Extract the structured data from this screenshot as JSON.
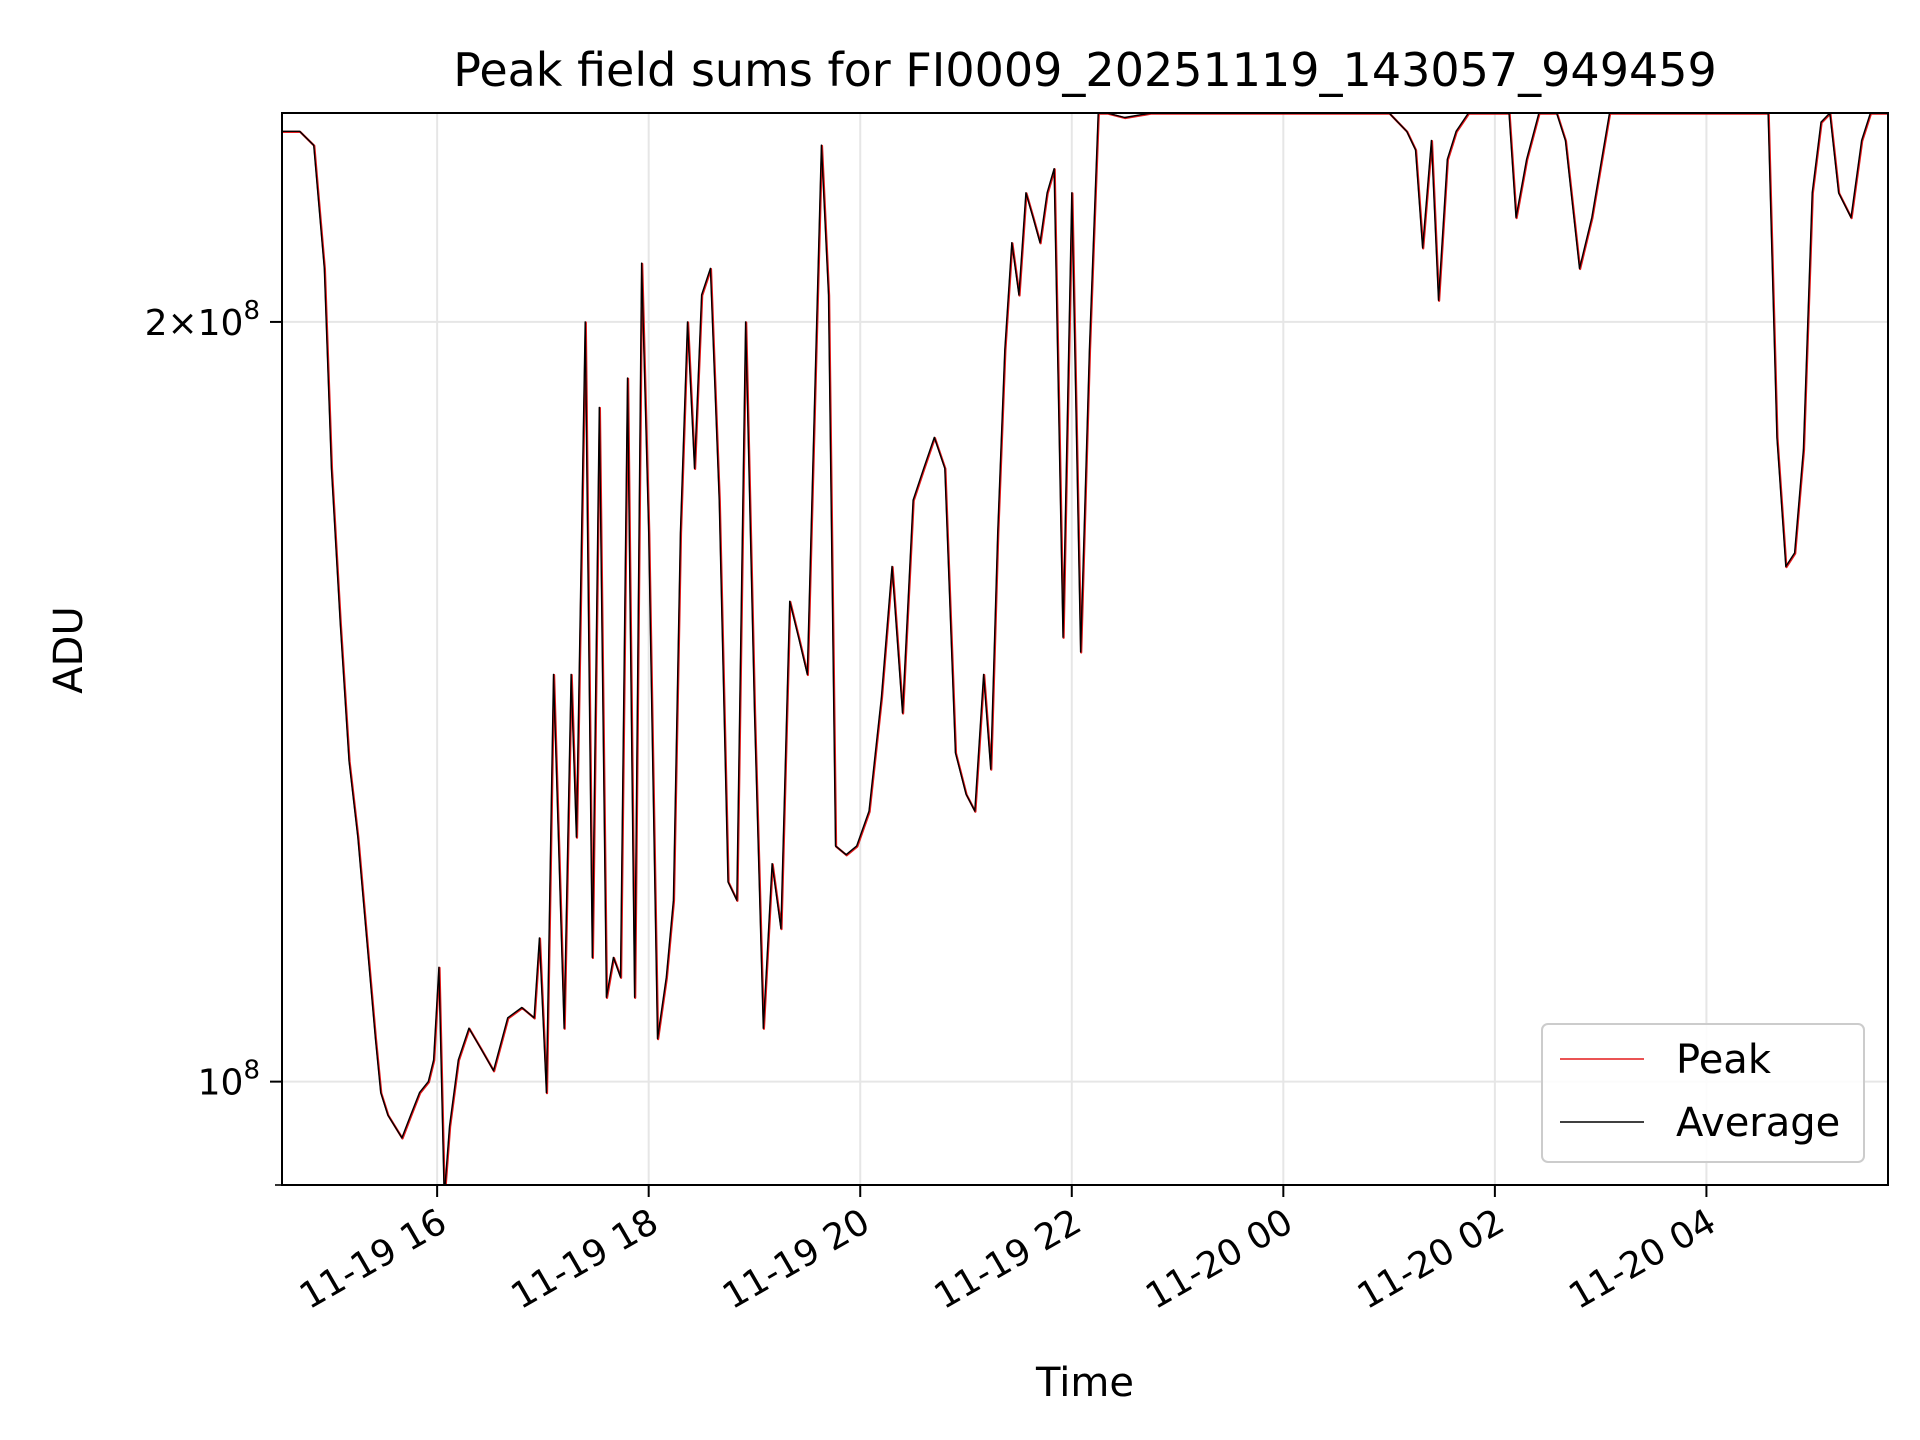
{
  "chart_data": {
    "type": "line",
    "title": "Peak field sums for FI0009_20251119_143057_949459",
    "xlabel": "Time",
    "ylabel": "ADU",
    "y_scale": "log",
    "x_range": [
      "2025-11-19 14:32",
      "2025-11-20 05:43"
    ],
    "ylim": [
      91000000,
      242000000
    ],
    "x_ticks": [
      {
        "label": "11-19 16",
        "t": "2025-11-19 16:00"
      },
      {
        "label": "11-19 18",
        "t": "2025-11-19 18:00"
      },
      {
        "label": "11-19 20",
        "t": "2025-11-19 20:00"
      },
      {
        "label": "11-19 22",
        "t": "2025-11-19 22:00"
      },
      {
        "label": "11-20 00",
        "t": "2025-11-20 00:00"
      },
      {
        "label": "11-20 02",
        "t": "2025-11-20 02:00"
      },
      {
        "label": "11-20 04",
        "t": "2025-11-20 04:00"
      }
    ],
    "y_ticks": [
      {
        "label": "2×10",
        "exp": "8",
        "value": 200000000
      },
      {
        "label": "10",
        "exp": "8",
        "value": 100000000
      }
    ],
    "grid": true,
    "legend_position": "lower right",
    "series": [
      {
        "name": "Peak",
        "color": "#e31a1c",
        "values_ref": "shared"
      },
      {
        "name": "Average",
        "color": "#000000",
        "values_ref": "shared"
      }
    ],
    "x": [
      "2025-11-19 14:32",
      "2025-11-19 14:42",
      "2025-11-19 14:50",
      "2025-11-19 14:56",
      "2025-11-19 15:00",
      "2025-11-19 15:05",
      "2025-11-19 15:10",
      "2025-11-19 15:15",
      "2025-11-19 15:20",
      "2025-11-19 15:25",
      "2025-11-19 15:28",
      "2025-11-19 15:32",
      "2025-11-19 15:36",
      "2025-11-19 15:40",
      "2025-11-19 15:45",
      "2025-11-19 15:50",
      "2025-11-19 15:55",
      "2025-11-19 15:58",
      "2025-11-19 16:01",
      "2025-11-19 16:04",
      "2025-11-19 16:07",
      "2025-11-19 16:12",
      "2025-11-19 16:18",
      "2025-11-19 16:25",
      "2025-11-19 16:32",
      "2025-11-19 16:40",
      "2025-11-19 16:48",
      "2025-11-19 16:55",
      "2025-11-19 16:58",
      "2025-11-19 17:02",
      "2025-11-19 17:06",
      "2025-11-19 17:12",
      "2025-11-19 17:16",
      "2025-11-19 17:19",
      "2025-11-19 17:24",
      "2025-11-19 17:28",
      "2025-11-19 17:32",
      "2025-11-19 17:36",
      "2025-11-19 17:40",
      "2025-11-19 17:44",
      "2025-11-19 17:48",
      "2025-11-19 17:52",
      "2025-11-19 17:56",
      "2025-11-19 18:00",
      "2025-11-19 18:05",
      "2025-11-19 18:10",
      "2025-11-19 18:14",
      "2025-11-19 18:18",
      "2025-11-19 18:22",
      "2025-11-19 18:26",
      "2025-11-19 18:30",
      "2025-11-19 18:35",
      "2025-11-19 18:40",
      "2025-11-19 18:45",
      "2025-11-19 18:50",
      "2025-11-19 18:55",
      "2025-11-19 19:00",
      "2025-11-19 19:05",
      "2025-11-19 19:10",
      "2025-11-19 19:15",
      "2025-11-19 19:20",
      "2025-11-19 19:25",
      "2025-11-19 19:30",
      "2025-11-19 19:34",
      "2025-11-19 19:38",
      "2025-11-19 19:42",
      "2025-11-19 19:46",
      "2025-11-19 19:52",
      "2025-11-19 19:58",
      "2025-11-19 20:05",
      "2025-11-19 20:12",
      "2025-11-19 20:18",
      "2025-11-19 20:24",
      "2025-11-19 20:30",
      "2025-11-19 20:36",
      "2025-11-19 20:42",
      "2025-11-19 20:48",
      "2025-11-19 20:54",
      "2025-11-19 21:00",
      "2025-11-19 21:05",
      "2025-11-19 21:10",
      "2025-11-19 21:14",
      "2025-11-19 21:18",
      "2025-11-19 21:22",
      "2025-11-19 21:26",
      "2025-11-19 21:30",
      "2025-11-19 21:34",
      "2025-11-19 21:38",
      "2025-11-19 21:42",
      "2025-11-19 21:46",
      "2025-11-19 21:50",
      "2025-11-19 21:55",
      "2025-11-19 22:00",
      "2025-11-19 22:05",
      "2025-11-19 22:10",
      "2025-11-19 22:15",
      "2025-11-19 22:20",
      "2025-11-19 22:30",
      "2025-11-19 22:45",
      "2025-11-19 23:00",
      "2025-11-19 23:30",
      "2025-11-20 00:00",
      "2025-11-20 00:30",
      "2025-11-20 01:00",
      "2025-11-20 01:10",
      "2025-11-20 01:15",
      "2025-11-20 01:19",
      "2025-11-20 01:24",
      "2025-11-20 01:28",
      "2025-11-20 01:33",
      "2025-11-20 01:38",
      "2025-11-20 01:45",
      "2025-11-20 02:00",
      "2025-11-20 02:08",
      "2025-11-20 02:12",
      "2025-11-20 02:18",
      "2025-11-20 02:25",
      "2025-11-20 02:35",
      "2025-11-20 02:40",
      "2025-11-20 02:48",
      "2025-11-20 02:55",
      "2025-11-20 03:05",
      "2025-11-20 03:30",
      "2025-11-20 04:00",
      "2025-11-20 04:35",
      "2025-11-20 04:40",
      "2025-11-20 04:45",
      "2025-11-20 04:50",
      "2025-11-20 04:55",
      "2025-11-20 05:00",
      "2025-11-20 05:05",
      "2025-11-20 05:10",
      "2025-11-20 05:15",
      "2025-11-20 05:22",
      "2025-11-20 05:28",
      "2025-11-20 05:33",
      "2025-11-20 05:43"
    ],
    "values": [
      238000000,
      238000000,
      235000000,
      210000000,
      175000000,
      152000000,
      134000000,
      125000000,
      114000000,
      104000000,
      99000000,
      97000000,
      96000000,
      95000000,
      97000000,
      99000000,
      100000000,
      102000000,
      111000000,
      90000000,
      96000000,
      102000000,
      105000000,
      103000000,
      101000000,
      106000000,
      107000000,
      106000000,
      114000000,
      99000000,
      145000000,
      105000000,
      145000000,
      125000000,
      200000000,
      112000000,
      185000000,
      108000000,
      112000000,
      110000000,
      190000000,
      108000000,
      211000000,
      165000000,
      104000000,
      110000000,
      118000000,
      165000000,
      200000000,
      175000000,
      205000000,
      210000000,
      170000000,
      120000000,
      118000000,
      200000000,
      140000000,
      105000000,
      122000000,
      115000000,
      155000000,
      150000000,
      145000000,
      185000000,
      235000000,
      205000000,
      124000000,
      123000000,
      124000000,
      128000000,
      142000000,
      160000000,
      140000000,
      170000000,
      175000000,
      180000000,
      175000000,
      135000000,
      130000000,
      128000000,
      145000000,
      133000000,
      165000000,
      195000000,
      215000000,
      205000000,
      225000000,
      220000000,
      215000000,
      225000000,
      230000000,
      150000000,
      225000000,
      148000000,
      195000000,
      242000000,
      242000000,
      241000000,
      242000000,
      242000000,
      242000000,
      242000000,
      242000000,
      242000000,
      238000000,
      234000000,
      214000000,
      236000000,
      204000000,
      232000000,
      238000000,
      242000000,
      242000000,
      242000000,
      220000000,
      232000000,
      242000000,
      242000000,
      236000000,
      210000000,
      220000000,
      242000000,
      242000000,
      242000000,
      242000000,
      180000000,
      160000000,
      162000000,
      178000000,
      225000000,
      240000000,
      242000000,
      225000000,
      220000000,
      236000000,
      242000000,
      242000000
    ]
  }
}
